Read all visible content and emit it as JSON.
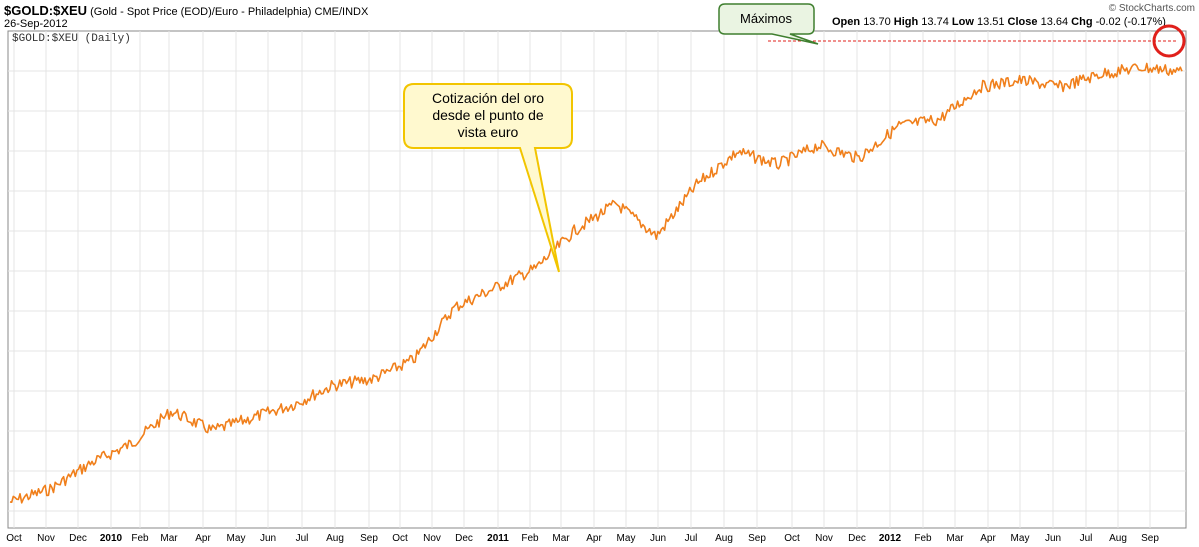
{
  "header": {
    "symbol": "$GOLD:$XEU",
    "description": "(Gold - Spot Price (EOD)/Euro - Philadelphia)",
    "exchange": "CME/INDX",
    "date": "26-Sep-2012",
    "watermark": "© StockCharts.com"
  },
  "ohlc": {
    "open_label": "Open",
    "open": "13.70",
    "high_label": "High",
    "high": "13.74",
    "low_label": "Low",
    "low": "13.51",
    "close_label": "Close",
    "close": "13.64",
    "chg_label": "Chg",
    "chg": "-0.02 (-0.17%)"
  },
  "annotations": {
    "maximos": "Máximos",
    "cotizacion": [
      "Cotización del oro",
      "desde el punto de",
      "vista euro"
    ]
  },
  "colors": {
    "line": "#f07f1b",
    "grid": "#e4e4e4",
    "maximos_border": "#3f7f2f",
    "maximos_fill": "#eaf4e2",
    "cotizacion_border": "#f2c500",
    "cotizacion_fill": "#fff9cf",
    "highlight_circle": "#e0201b",
    "max_line": "#e0201b"
  },
  "chart_data": {
    "type": "line",
    "legend": "$GOLD:$XEU (Daily)",
    "x_tick_labels": [
      "Oct",
      "Nov",
      "Dec",
      "2010",
      "Feb",
      "Mar",
      "Apr",
      "May",
      "Jun",
      "Jul",
      "Aug",
      "Sep",
      "Oct",
      "Nov",
      "Dec",
      "2011",
      "Feb",
      "Mar",
      "Apr",
      "May",
      "Jun",
      "Jul",
      "Aug",
      "Sep",
      "Oct",
      "Nov",
      "Dec",
      "2012",
      "Feb",
      "Mar",
      "Apr",
      "May",
      "Jun",
      "Jul",
      "Aug",
      "Sep"
    ],
    "bold_ticks": [
      "2010",
      "2011",
      "2012"
    ],
    "x_range": [
      "2009-10",
      "2012-09-26"
    ],
    "grid": true,
    "series": [
      {
        "values": [
          7.0,
          7.2,
          7.6,
          7.9,
          8.4,
          8.1,
          8.3,
          8.5,
          8.8,
          8.9,
          9.2,
          10.0,
          10.3,
          10.6,
          11.2,
          11.6,
          11.1,
          11.9,
          12.4,
          12.2,
          12.5,
          12.3,
          12.8,
          12.9,
          13.4,
          13.5,
          13.4,
          13.6,
          13.7,
          13.64
        ]
      }
    ]
  }
}
